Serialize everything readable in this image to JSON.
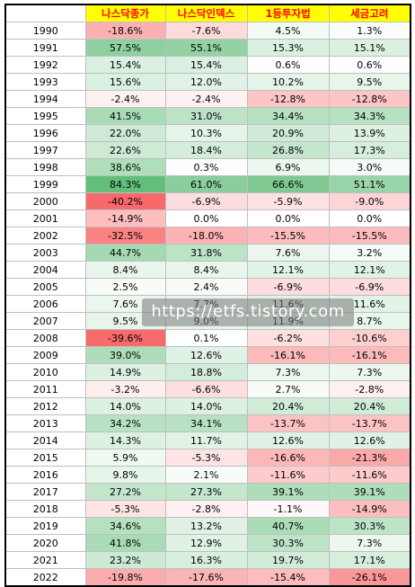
{
  "table": {
    "headers": [
      "나스닥종가",
      "나스닥인덱스",
      "1등투자법",
      "세금고려"
    ],
    "colors": {
      "header_bg": "#ffff00",
      "header_text": "#ff0000",
      "positive": "#63be7b",
      "negative": "#f8696b",
      "neutral": "#ffffff"
    },
    "rows": [
      {
        "year": "1990",
        "v": [
          "-18.6%",
          "-7.6%",
          "4.5%",
          "1.3%"
        ],
        "n": [
          -18.6,
          -7.6,
          4.5,
          1.3
        ]
      },
      {
        "year": "1991",
        "v": [
          "57.5%",
          "55.1%",
          "15.3%",
          "15.1%"
        ],
        "n": [
          57.5,
          55.1,
          15.3,
          15.1
        ]
      },
      {
        "year": "1992",
        "v": [
          "15.4%",
          "15.4%",
          "0.6%",
          "0.6%"
        ],
        "n": [
          15.4,
          15.4,
          0.6,
          0.6
        ]
      },
      {
        "year": "1993",
        "v": [
          "15.6%",
          "12.0%",
          "10.2%",
          "9.5%"
        ],
        "n": [
          15.6,
          12.0,
          10.2,
          9.5
        ]
      },
      {
        "year": "1994",
        "v": [
          "-2.4%",
          "-2.4%",
          "-12.8%",
          "-12.8%"
        ],
        "n": [
          -2.4,
          -2.4,
          -12.8,
          -12.8
        ]
      },
      {
        "year": "1995",
        "v": [
          "41.5%",
          "31.0%",
          "34.4%",
          "34.3%"
        ],
        "n": [
          41.5,
          31.0,
          34.4,
          34.3
        ]
      },
      {
        "year": "1996",
        "v": [
          "22.0%",
          "10.3%",
          "20.9%",
          "13.9%"
        ],
        "n": [
          22.0,
          10.3,
          20.9,
          13.9
        ]
      },
      {
        "year": "1997",
        "v": [
          "22.6%",
          "18.4%",
          "26.8%",
          "17.3%"
        ],
        "n": [
          22.6,
          18.4,
          26.8,
          17.3
        ]
      },
      {
        "year": "1998",
        "v": [
          "38.6%",
          "0.3%",
          "6.9%",
          "3.0%"
        ],
        "n": [
          38.6,
          0.3,
          6.9,
          3.0
        ]
      },
      {
        "year": "1999",
        "v": [
          "84.3%",
          "61.0%",
          "66.6%",
          "51.1%"
        ],
        "n": [
          84.3,
          61.0,
          66.6,
          51.1
        ]
      },
      {
        "year": "2000",
        "v": [
          "-40.2%",
          "-6.9%",
          "-5.9%",
          "-9.0%"
        ],
        "n": [
          -40.2,
          -6.9,
          -5.9,
          -9.0
        ]
      },
      {
        "year": "2001",
        "v": [
          "-14.9%",
          "0.0%",
          "0.0%",
          "0.0%"
        ],
        "n": [
          -14.9,
          0.0,
          0.0,
          0.0
        ]
      },
      {
        "year": "2002",
        "v": [
          "-32.5%",
          "-18.0%",
          "-15.5%",
          "-15.5%"
        ],
        "n": [
          -32.5,
          -18.0,
          -15.5,
          -15.5
        ]
      },
      {
        "year": "2003",
        "v": [
          "44.7%",
          "31.8%",
          "7.6%",
          "3.2%"
        ],
        "n": [
          44.7,
          31.8,
          7.6,
          3.2
        ]
      },
      {
        "year": "2004",
        "v": [
          "8.4%",
          "8.4%",
          "12.1%",
          "12.1%"
        ],
        "n": [
          8.4,
          8.4,
          12.1,
          12.1
        ]
      },
      {
        "year": "2005",
        "v": [
          "2.5%",
          "2.4%",
          "-6.9%",
          "-6.9%"
        ],
        "n": [
          2.5,
          2.4,
          -6.9,
          -6.9
        ]
      },
      {
        "year": "2006",
        "v": [
          "7.6%",
          "7.7%",
          "11.6%",
          "11.6%"
        ],
        "n": [
          7.6,
          7.7,
          11.6,
          11.6
        ]
      },
      {
        "year": "2007",
        "v": [
          "9.5%",
          "9.0%",
          "11.9%",
          "8.7%"
        ],
        "n": [
          9.5,
          9.0,
          11.9,
          8.7
        ]
      },
      {
        "year": "2008",
        "v": [
          "-39.6%",
          "0.1%",
          "-6.2%",
          "-10.6%"
        ],
        "n": [
          -39.6,
          0.1,
          -6.2,
          -10.6
        ]
      },
      {
        "year": "2009",
        "v": [
          "39.0%",
          "12.6%",
          "-16.1%",
          "-16.1%"
        ],
        "n": [
          39.0,
          12.6,
          -16.1,
          -16.1
        ]
      },
      {
        "year": "2010",
        "v": [
          "14.9%",
          "18.8%",
          "7.3%",
          "7.3%"
        ],
        "n": [
          14.9,
          18.8,
          7.3,
          7.3
        ]
      },
      {
        "year": "2011",
        "v": [
          "-3.2%",
          "-6.6%",
          "2.7%",
          "-2.8%"
        ],
        "n": [
          -3.2,
          -6.6,
          2.7,
          -2.8
        ]
      },
      {
        "year": "2012",
        "v": [
          "14.0%",
          "14.0%",
          "20.4%",
          "20.4%"
        ],
        "n": [
          14.0,
          14.0,
          20.4,
          20.4
        ]
      },
      {
        "year": "2013",
        "v": [
          "34.2%",
          "34.1%",
          "-13.7%",
          "-13.7%"
        ],
        "n": [
          34.2,
          34.1,
          -13.7,
          -13.7
        ]
      },
      {
        "year": "2014",
        "v": [
          "14.3%",
          "11.7%",
          "12.6%",
          "12.6%"
        ],
        "n": [
          14.3,
          11.7,
          12.6,
          12.6
        ]
      },
      {
        "year": "2015",
        "v": [
          "5.9%",
          "-5.3%",
          "-16.6%",
          "-21.3%"
        ],
        "n": [
          5.9,
          -5.3,
          -16.6,
          -21.3
        ]
      },
      {
        "year": "2016",
        "v": [
          "9.8%",
          "2.1%",
          "-11.6%",
          "-11.6%"
        ],
        "n": [
          9.8,
          2.1,
          -11.6,
          -11.6
        ]
      },
      {
        "year": "2017",
        "v": [
          "27.2%",
          "27.3%",
          "39.1%",
          "39.1%"
        ],
        "n": [
          27.2,
          27.3,
          39.1,
          39.1
        ]
      },
      {
        "year": "2018",
        "v": [
          "-5.3%",
          "-2.8%",
          "-1.1%",
          "-14.9%"
        ],
        "n": [
          -5.3,
          -2.8,
          -1.1,
          -14.9
        ]
      },
      {
        "year": "2019",
        "v": [
          "34.6%",
          "13.2%",
          "40.7%",
          "30.3%"
        ],
        "n": [
          34.6,
          13.2,
          40.7,
          30.3
        ]
      },
      {
        "year": "2020",
        "v": [
          "41.8%",
          "12.9%",
          "30.3%",
          "7.3%"
        ],
        "n": [
          41.8,
          12.9,
          30.3,
          7.3
        ]
      },
      {
        "year": "2021",
        "v": [
          "23.2%",
          "16.3%",
          "19.7%",
          "17.1%"
        ],
        "n": [
          23.2,
          16.3,
          19.7,
          17.1
        ]
      },
      {
        "year": "2022",
        "v": [
          "-19.8%",
          "-17.6%",
          "-15.4%",
          "-26.1%"
        ],
        "n": [
          -19.8,
          -17.6,
          -15.4,
          -26.1
        ]
      }
    ]
  },
  "watermark": {
    "text": "https://etfs.tistory.com"
  }
}
